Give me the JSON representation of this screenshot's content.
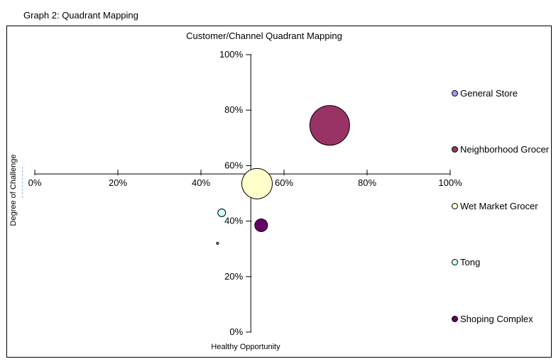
{
  "header": {
    "caption": "Graph 2: Quadrant Mapping"
  },
  "chart_data": {
    "type": "bubble",
    "title": "Customer/Channel Quadrant Mapping",
    "xlabel": "Healthy Opportunity",
    "ylabel": "Degree of Challenge",
    "xlim": [
      0,
      100
    ],
    "ylim": [
      0,
      100
    ],
    "x_tick_step": 20,
    "y_tick_step": 20,
    "x_ticks": [
      "0%",
      "20%",
      "40%",
      "60%",
      "80%",
      "100%"
    ],
    "y_ticks": [
      "0%",
      "20%",
      "40%",
      "60%",
      "80%",
      "100%"
    ],
    "axes_cross_at": {
      "x": 52,
      "y": 57
    },
    "grid": false,
    "legend_position": "right",
    "series": [
      {
        "name": "General Store",
        "x": 44,
        "y": 32,
        "bubble_radius_px": 1.5,
        "color": "#9999FF"
      },
      {
        "name": "Neighborhood Grocer",
        "x": 71,
        "y": 74.5,
        "bubble_radius_px": 28,
        "color": "#993366"
      },
      {
        "name": "Wet Market Grocer",
        "x": 53.5,
        "y": 53.5,
        "bubble_radius_px": 21.5,
        "color": "#FFFFCC"
      },
      {
        "name": "Tong",
        "x": 45,
        "y": 43,
        "bubble_radius_px": 5.5,
        "color": "#CCFFFF"
      },
      {
        "name": "Shoping Complex",
        "x": 54.5,
        "y": 38.5,
        "bubble_radius_px": 9,
        "color": "#660066"
      }
    ]
  }
}
